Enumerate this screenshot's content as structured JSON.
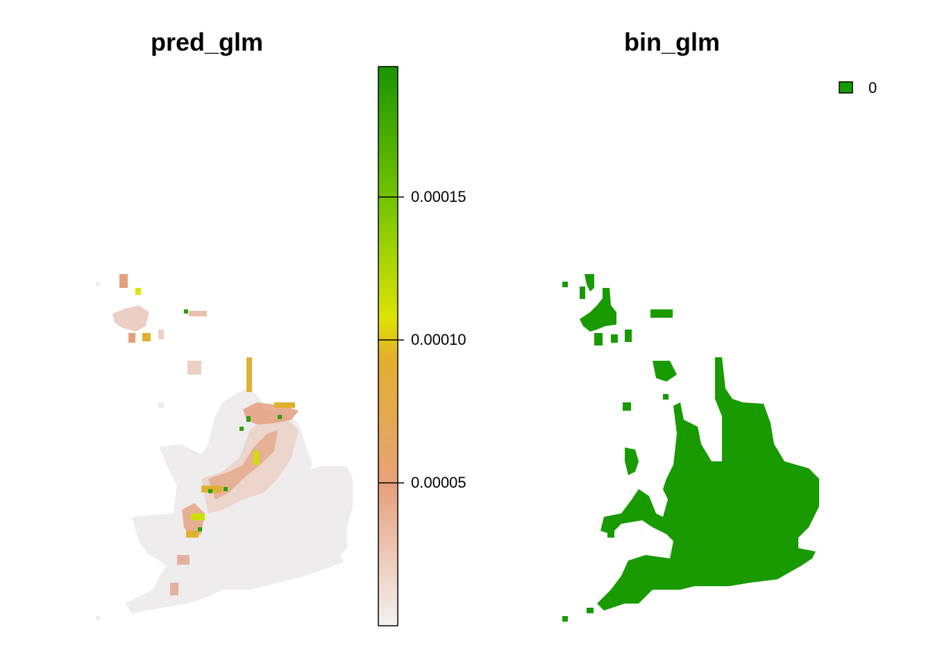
{
  "left_panel": {
    "title": "pred_glm",
    "colorbar": {
      "ticks": [
        {
          "label": "0.00005",
          "value": 5e-05
        },
        {
          "label": "0.00010",
          "value": 0.0001
        },
        {
          "label": "0.00015",
          "value": 0.00015
        }
      ],
      "range": [
        1.8e-06,
        0.000195
      ],
      "colors": [
        "#f2f2f2",
        "#e7a07c",
        "#e5ae2c",
        "#dde300",
        "#79c600",
        "#1a9400"
      ]
    },
    "map_colors": {
      "background_land": "#eeecec",
      "low": "#ead0c6",
      "medium": "#e4a07e",
      "high": "#e0b030",
      "higher": "#cfe000",
      "highest": "#2aa000"
    }
  },
  "right_panel": {
    "title": "bin_glm",
    "legend": {
      "items": [
        {
          "label": "0",
          "color": "#189a00"
        }
      ]
    },
    "map_color": "#189a00"
  }
}
